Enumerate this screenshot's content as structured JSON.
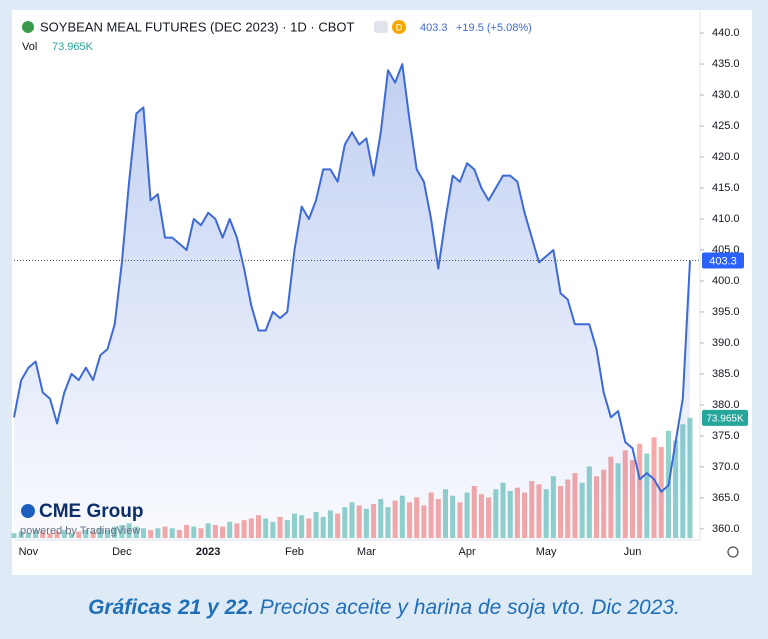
{
  "chart_data": {
    "type": "area",
    "title": "SOYBEAN MEAL FUTURES (DEC 2023) · 1D · CBOT",
    "interval_badge": "D",
    "change": "+19.5 (+5.08%)",
    "volume_title": "Vol",
    "volume_label": "73.965K",
    "color": "#3d6ad6",
    "volume_colors": {
      "up": "#26a69a",
      "down": "#ef5350"
    },
    "categories": [
      null,
      null,
      "Nov",
      null,
      null,
      null,
      null,
      null,
      null,
      null,
      null,
      null,
      null,
      null,
      null,
      "Dec",
      null,
      null,
      null,
      null,
      null,
      null,
      null,
      null,
      null,
      null,
      null,
      "2023",
      null,
      null,
      null,
      null,
      null,
      null,
      null,
      null,
      null,
      null,
      null,
      "Feb",
      null,
      null,
      null,
      null,
      null,
      null,
      null,
      null,
      null,
      "Mar",
      null,
      null,
      null,
      null,
      null,
      null,
      null,
      null,
      null,
      null,
      null,
      null,
      null,
      "Apr",
      null,
      null,
      null,
      null,
      null,
      null,
      null,
      null,
      null,
      null,
      "May",
      null,
      null,
      null,
      null,
      null,
      null,
      null,
      null,
      null,
      null,
      null,
      "Jun",
      null,
      null,
      null,
      null,
      null,
      null,
      null,
      null
    ],
    "values": [
      378,
      384,
      386,
      387,
      382,
      381,
      377,
      382,
      385,
      384,
      386,
      384,
      388,
      389,
      393,
      403,
      416,
      427,
      428,
      413,
      414,
      407,
      407,
      406,
      405,
      410,
      409,
      411,
      410,
      407,
      410,
      407,
      402,
      396,
      392,
      392,
      395,
      394,
      395,
      405,
      412,
      410,
      413,
      418,
      418,
      416,
      422,
      424,
      422,
      423,
      417,
      424,
      434,
      432,
      435,
      426,
      418,
      416,
      410,
      402,
      410,
      417,
      416,
      419,
      418,
      415,
      413,
      415,
      417,
      417,
      416,
      411,
      407,
      403,
      404,
      405,
      398,
      397,
      393,
      393,
      393,
      389,
      382,
      378,
      379,
      374,
      373,
      368,
      369,
      368,
      366,
      367,
      374,
      381,
      403.3
    ],
    "volume": [
      3,
      4,
      3,
      5,
      4,
      3,
      4,
      5,
      3,
      4,
      5,
      4,
      6,
      5,
      7,
      8,
      9,
      7,
      6,
      5,
      6,
      7,
      6,
      5,
      8,
      7,
      6,
      9,
      8,
      7,
      10,
      9,
      11,
      12,
      14,
      12,
      10,
      13,
      11,
      15,
      14,
      12,
      16,
      13,
      17,
      15,
      19,
      22,
      20,
      18,
      21,
      24,
      19,
      23,
      26,
      22,
      25,
      20,
      28,
      24,
      30,
      26,
      22,
      28,
      32,
      27,
      25,
      30,
      34,
      29,
      31,
      28,
      35,
      33,
      30,
      38,
      32,
      36,
      40,
      34,
      44,
      38,
      42,
      50,
      46,
      54,
      48,
      58,
      52,
      62,
      56,
      66,
      60,
      70,
      73.965
    ],
    "ylim": [
      358.2,
      443.4
    ],
    "y2lim": [
      0,
      325
    ],
    "yticks": [
      {
        "value": 360,
        "label": "360.0"
      },
      {
        "value": 365,
        "label": "365.0"
      },
      {
        "value": 370,
        "label": "370.0"
      },
      {
        "value": 375,
        "label": "375.0"
      },
      {
        "value": 380,
        "label": "380.0"
      },
      {
        "value": 385,
        "label": "385.0"
      },
      {
        "value": 390,
        "label": "390.0"
      },
      {
        "value": 395,
        "label": "395.0"
      },
      {
        "value": 400,
        "label": "400.0"
      },
      {
        "value": 405,
        "label": "405.0"
      },
      {
        "value": 410,
        "label": "410.0"
      },
      {
        "value": 415,
        "label": "415.0"
      },
      {
        "value": 420,
        "label": "420.0"
      },
      {
        "value": 425,
        "label": "425.0"
      },
      {
        "value": 430,
        "label": "430.0"
      },
      {
        "value": 435,
        "label": "435.0"
      },
      {
        "value": 440,
        "label": "440.0"
      }
    ],
    "branding": {
      "name": "CME Group",
      "powered": "powered by TradingView"
    }
  },
  "caption": {
    "label": "Gráficas 21 y 22.",
    "text": "Precios aceite y harina de soja vto. Dic 2023."
  }
}
